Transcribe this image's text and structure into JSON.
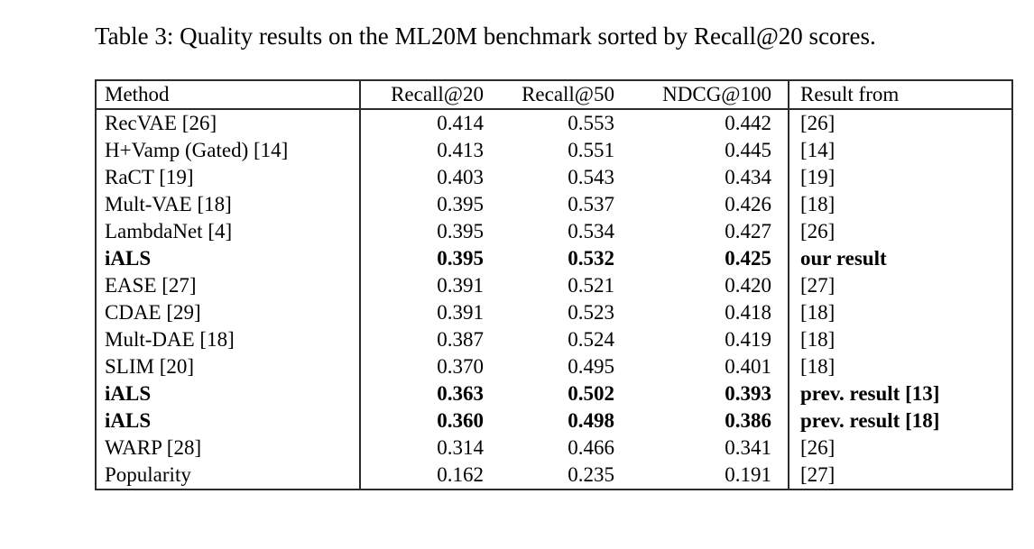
{
  "caption": "Table 3: Quality results on the ML20M benchmark sorted by Recall@20 scores.",
  "colors": {
    "background": "#ffffff",
    "text": "#000000",
    "border": "#2b2b2b"
  },
  "table": {
    "columns": [
      {
        "key": "method",
        "label": "Method"
      },
      {
        "key": "recall20",
        "label": "Recall@20"
      },
      {
        "key": "recall50",
        "label": "Recall@50"
      },
      {
        "key": "ndcg100",
        "label": "NDCG@100"
      },
      {
        "key": "result_from",
        "label": "Result from"
      }
    ],
    "rows": [
      {
        "method": "RecVAE [26]",
        "recall20": "0.414",
        "recall50": "0.553",
        "ndcg100": "0.442",
        "result_from": "[26]",
        "bold": false
      },
      {
        "method": "H+Vamp (Gated) [14]",
        "recall20": "0.413",
        "recall50": "0.551",
        "ndcg100": "0.445",
        "result_from": "[14]",
        "bold": false
      },
      {
        "method": "RaCT [19]",
        "recall20": "0.403",
        "recall50": "0.543",
        "ndcg100": "0.434",
        "result_from": "[19]",
        "bold": false
      },
      {
        "method": "Mult-VAE [18]",
        "recall20": "0.395",
        "recall50": "0.537",
        "ndcg100": "0.426",
        "result_from": "[18]",
        "bold": false
      },
      {
        "method": "LambdaNet [4]",
        "recall20": "0.395",
        "recall50": "0.534",
        "ndcg100": "0.427",
        "result_from": "[26]",
        "bold": false
      },
      {
        "method": "iALS",
        "recall20": "0.395",
        "recall50": "0.532",
        "ndcg100": "0.425",
        "result_from": "our result",
        "bold": true
      },
      {
        "method": "EASE [27]",
        "recall20": "0.391",
        "recall50": "0.521",
        "ndcg100": "0.420",
        "result_from": "[27]",
        "bold": false
      },
      {
        "method": "CDAE [29]",
        "recall20": "0.391",
        "recall50": "0.523",
        "ndcg100": "0.418",
        "result_from": "[18]",
        "bold": false
      },
      {
        "method": "Mult-DAE [18]",
        "recall20": "0.387",
        "recall50": "0.524",
        "ndcg100": "0.419",
        "result_from": "[18]",
        "bold": false
      },
      {
        "method": "SLIM [20]",
        "recall20": "0.370",
        "recall50": "0.495",
        "ndcg100": "0.401",
        "result_from": "[18]",
        "bold": false
      },
      {
        "method": "iALS",
        "recall20": "0.363",
        "recall50": "0.502",
        "ndcg100": "0.393",
        "result_from": "prev. result [13]",
        "bold": true
      },
      {
        "method": "iALS",
        "recall20": "0.360",
        "recall50": "0.498",
        "ndcg100": "0.386",
        "result_from": "prev. result [18]",
        "bold": true
      },
      {
        "method": "WARP [28]",
        "recall20": "0.314",
        "recall50": "0.466",
        "ndcg100": "0.341",
        "result_from": "[26]",
        "bold": false
      },
      {
        "method": "Popularity",
        "recall20": "0.162",
        "recall50": "0.235",
        "ndcg100": "0.191",
        "result_from": "[27]",
        "bold": false
      }
    ]
  }
}
